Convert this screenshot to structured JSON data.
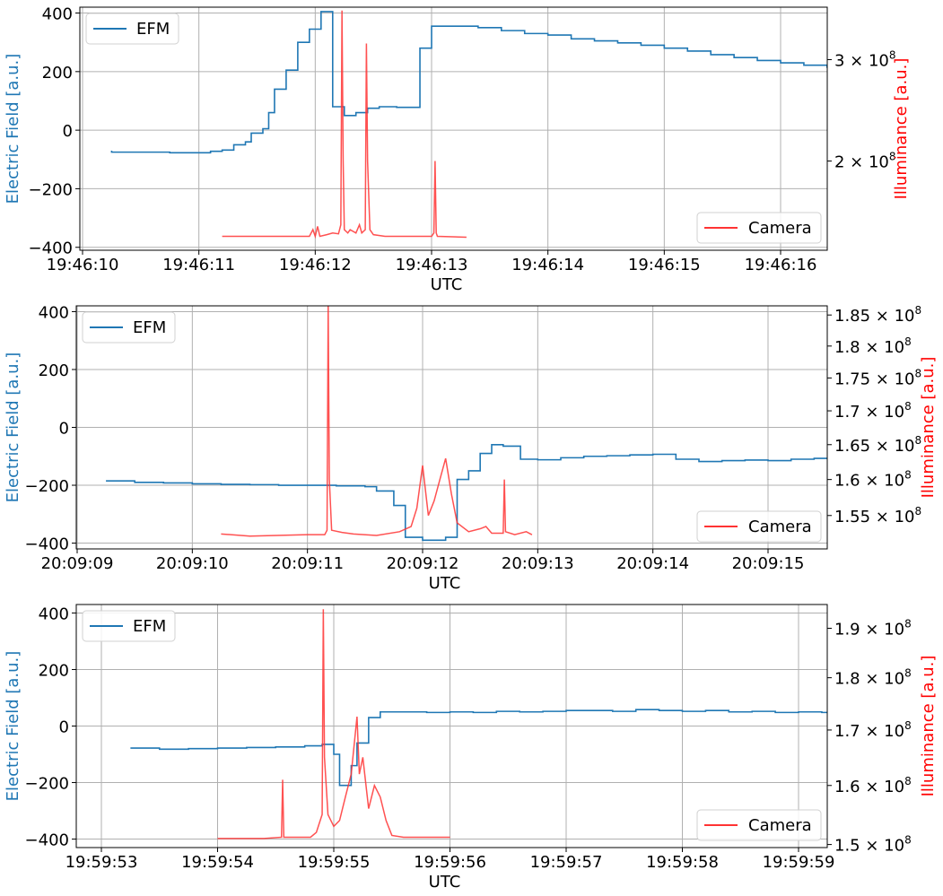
{
  "chart_data": [
    {
      "type": "line",
      "xlabel": "UTC",
      "ylabel_left": "Electric Field [a.u.]",
      "ylabel_right": "Illuminance [a.u.]",
      "x_ticks": [
        "19:46:10",
        "19:46:11",
        "19:46:12",
        "19:46:13",
        "19:46:14",
        "19:46:15",
        "19:46:16"
      ],
      "xlim": [
        -0.02,
        6.4
      ],
      "ylim_left": [
        -410,
        420
      ],
      "ylim_right": [
        140000000,
        370000000
      ],
      "y_right_scale": "log",
      "y_ticks_left": [
        "400",
        "200",
        "0",
        "−200",
        "−400"
      ],
      "y_ticks_right": [
        {
          "value": 300000000,
          "label": "3 × 10",
          "exp": "8"
        },
        {
          "value": 200000000,
          "label": "2 × 10",
          "exp": "8"
        }
      ],
      "grid": true,
      "legend_left_position": "upper left",
      "legend_right_position": "lower right",
      "series": [
        {
          "name": "EFM",
          "axis": "left",
          "style": "steps",
          "color": "#1f77b4",
          "points": [
            [
              0.25,
              -70
            ],
            [
              0.25,
              -75
            ],
            [
              0.5,
              -75
            ],
            [
              0.75,
              -77
            ],
            [
              1.0,
              -77
            ],
            [
              1.1,
              -72
            ],
            [
              1.2,
              -68
            ],
            [
              1.3,
              -50
            ],
            [
              1.4,
              -40
            ],
            [
              1.45,
              -10
            ],
            [
              1.55,
              5
            ],
            [
              1.6,
              60
            ],
            [
              1.65,
              140
            ],
            [
              1.75,
              205
            ],
            [
              1.85,
              300
            ],
            [
              1.95,
              345
            ],
            [
              2.05,
              405
            ],
            [
              2.15,
              80
            ],
            [
              2.25,
              50
            ],
            [
              2.35,
              60
            ],
            [
              2.45,
              75
            ],
            [
              2.55,
              80
            ],
            [
              2.7,
              78
            ],
            [
              2.9,
              280
            ],
            [
              3.0,
              355
            ],
            [
              3.2,
              355
            ],
            [
              3.4,
              350
            ],
            [
              3.6,
              340
            ],
            [
              3.8,
              330
            ],
            [
              4.0,
              325
            ],
            [
              4.2,
              312
            ],
            [
              4.4,
              305
            ],
            [
              4.6,
              298
            ],
            [
              4.8,
              290
            ],
            [
              5.0,
              280
            ],
            [
              5.2,
              270
            ],
            [
              5.4,
              258
            ],
            [
              5.6,
              248
            ],
            [
              5.8,
              238
            ],
            [
              6.0,
              230
            ],
            [
              6.2,
              222
            ],
            [
              6.4,
              215
            ],
            [
              6.6,
              210
            ],
            [
              6.7,
              210
            ]
          ]
        },
        {
          "name": "Camera",
          "axis": "right",
          "style": "line",
          "color": "#ff3333",
          "points": [
            [
              1.2,
              148000000
            ],
            [
              1.5,
              148000000
            ],
            [
              1.8,
              148000000
            ],
            [
              1.95,
              148000000
            ],
            [
              1.98,
              152000000
            ],
            [
              2.0,
              148000000
            ],
            [
              2.02,
              154000000
            ],
            [
              2.04,
              148000000
            ],
            [
              2.1,
              149000000
            ],
            [
              2.15,
              150000000
            ],
            [
              2.2,
              149500000
            ],
            [
              2.22,
              155000000
            ],
            [
              2.23,
              365000000
            ],
            [
              2.24,
              200000000
            ],
            [
              2.25,
              152000000
            ],
            [
              2.28,
              150000000
            ],
            [
              2.3,
              152000000
            ],
            [
              2.35,
              150000000
            ],
            [
              2.38,
              155000000
            ],
            [
              2.4,
              150000000
            ],
            [
              2.43,
              152000000
            ],
            [
              2.44,
              320000000
            ],
            [
              2.45,
              200000000
            ],
            [
              2.47,
              152000000
            ],
            [
              2.5,
              149000000
            ],
            [
              2.6,
              148000000
            ],
            [
              3.0,
              148000000
            ],
            [
              3.02,
              150000000
            ],
            [
              3.03,
              200000000
            ],
            [
              3.04,
              150000000
            ],
            [
              3.05,
              148000000
            ],
            [
              3.3,
              147500000
            ]
          ]
        }
      ]
    },
    {
      "type": "line",
      "xlabel": "UTC",
      "ylabel_left": "Electric Field [a.u.]",
      "ylabel_right": "Illuminance [a.u.]",
      "x_ticks": [
        "20:09:09",
        "20:09:10",
        "20:09:11",
        "20:09:12",
        "20:09:13",
        "20:09:14",
        "20:09:15"
      ],
      "xlim": [
        -0.02,
        6.4
      ],
      "ylim_left": [
        -420,
        420
      ],
      "ylim_right": [
        150500000,
        186500000
      ],
      "y_right_scale": "log",
      "y_ticks_left": [
        "400",
        "200",
        "0",
        "−200",
        "−400"
      ],
      "y_ticks_right": [
        {
          "value": 185000000,
          "label": "1.85 × 10",
          "exp": "8"
        },
        {
          "value": 180000000,
          "label": "1.8 × 10",
          "exp": "8"
        },
        {
          "value": 175000000,
          "label": "1.75 × 10",
          "exp": "8"
        },
        {
          "value": 170000000,
          "label": "1.7 × 10",
          "exp": "8"
        },
        {
          "value": 165000000,
          "label": "1.65 × 10",
          "exp": "8"
        },
        {
          "value": 160000000,
          "label": "1.6 × 10",
          "exp": "8"
        },
        {
          "value": 155000000,
          "label": "1.55 × 10",
          "exp": "8"
        }
      ],
      "grid": true,
      "legend_left_position": "upper left",
      "legend_right_position": "lower right",
      "series": [
        {
          "name": "EFM",
          "axis": "left",
          "style": "steps",
          "color": "#1f77b4",
          "points": [
            [
              0.25,
              -185
            ],
            [
              0.5,
              -190
            ],
            [
              0.75,
              -192
            ],
            [
              1.0,
              -195
            ],
            [
              1.25,
              -197
            ],
            [
              1.5,
              -198
            ],
            [
              1.75,
              -200
            ],
            [
              2.0,
              -200
            ],
            [
              2.25,
              -202
            ],
            [
              2.5,
              -205
            ],
            [
              2.6,
              -220
            ],
            [
              2.75,
              -270
            ],
            [
              2.85,
              -380
            ],
            [
              3.0,
              -390
            ],
            [
              3.2,
              -380
            ],
            [
              3.3,
              -180
            ],
            [
              3.4,
              -150
            ],
            [
              3.5,
              -90
            ],
            [
              3.6,
              -60
            ],
            [
              3.7,
              -65
            ],
            [
              3.85,
              -110
            ],
            [
              4.0,
              -112
            ],
            [
              4.2,
              -105
            ],
            [
              4.4,
              -100
            ],
            [
              4.6,
              -98
            ],
            [
              4.8,
              -95
            ],
            [
              5.0,
              -93
            ],
            [
              5.2,
              -110
            ],
            [
              5.4,
              -118
            ],
            [
              5.6,
              -115
            ],
            [
              5.8,
              -113
            ],
            [
              6.0,
              -115
            ],
            [
              6.2,
              -110
            ],
            [
              6.4,
              -107
            ],
            [
              6.6,
              -102
            ],
            [
              6.7,
              -100
            ]
          ]
        },
        {
          "name": "Camera",
          "axis": "right",
          "style": "line",
          "color": "#ff3333",
          "points": [
            [
              1.25,
              152500000
            ],
            [
              1.5,
              152200000
            ],
            [
              2.0,
              152400000
            ],
            [
              2.15,
              152400000
            ],
            [
              2.17,
              153000000
            ],
            [
              2.18,
              186500000
            ],
            [
              2.19,
              160000000
            ],
            [
              2.21,
              153000000
            ],
            [
              2.3,
              152700000
            ],
            [
              2.4,
              152500000
            ],
            [
              2.6,
              152300000
            ],
            [
              2.8,
              152800000
            ],
            [
              2.9,
              153500000
            ],
            [
              2.95,
              156000000
            ],
            [
              3.0,
              162000000
            ],
            [
              3.05,
              155000000
            ],
            [
              3.1,
              157000000
            ],
            [
              3.15,
              160000000
            ],
            [
              3.2,
              163000000
            ],
            [
              3.22,
              161000000
            ],
            [
              3.25,
              158000000
            ],
            [
              3.3,
              154000000
            ],
            [
              3.4,
              152800000
            ],
            [
              3.5,
              153200000
            ],
            [
              3.55,
              153500000
            ],
            [
              3.6,
              152600000
            ],
            [
              3.7,
              152600000
            ],
            [
              3.71,
              160000000
            ],
            [
              3.72,
              152800000
            ],
            [
              3.8,
              152400000
            ],
            [
              3.9,
              152800000
            ],
            [
              3.95,
              152400000
            ]
          ]
        }
      ]
    },
    {
      "type": "line",
      "xlabel": "UTC",
      "ylabel_left": "Electric Field [a.u.]",
      "ylabel_right": "Illuminance [a.u.]",
      "x_ticks": [
        "19:59:53",
        "19:59:54",
        "19:59:55",
        "19:59:56",
        "19:59:57",
        "19:59:58",
        "19:59:59"
      ],
      "xlim": [
        -0.02,
        6.4
      ],
      "ylim_left": [
        -430,
        430
      ],
      "ylim_right": [
        149500000,
        195000000
      ],
      "y_right_scale": "log",
      "y_ticks_left": [
        "400",
        "200",
        "0",
        "−200",
        "−400"
      ],
      "y_ticks_right": [
        {
          "value": 190000000,
          "label": "1.9 × 10",
          "exp": "8"
        },
        {
          "value": 180000000,
          "label": "1.8 × 10",
          "exp": "8"
        },
        {
          "value": 170000000,
          "label": "1.7 × 10",
          "exp": "8"
        },
        {
          "value": 160000000,
          "label": "1.6 × 10",
          "exp": "8"
        },
        {
          "value": 150000000,
          "label": "1.5 × 10",
          "exp": "8"
        }
      ],
      "grid": true,
      "legend_left_position": "upper left",
      "legend_right_position": "lower right",
      "series": [
        {
          "name": "EFM",
          "axis": "left",
          "style": "steps",
          "color": "#1f77b4",
          "points": [
            [
              0.25,
              -78
            ],
            [
              0.5,
              -82
            ],
            [
              0.75,
              -80
            ],
            [
              1.0,
              -78
            ],
            [
              1.25,
              -76
            ],
            [
              1.5,
              -74
            ],
            [
              1.75,
              -70
            ],
            [
              1.9,
              -65
            ],
            [
              2.0,
              -100
            ],
            [
              2.05,
              -210
            ],
            [
              2.15,
              -140
            ],
            [
              2.2,
              -60
            ],
            [
              2.3,
              30
            ],
            [
              2.4,
              50
            ],
            [
              2.6,
              50
            ],
            [
              2.8,
              48
            ],
            [
              3.0,
              50
            ],
            [
              3.2,
              48
            ],
            [
              3.4,
              52
            ],
            [
              3.6,
              50
            ],
            [
              3.8,
              52
            ],
            [
              4.0,
              55
            ],
            [
              4.2,
              55
            ],
            [
              4.4,
              52
            ],
            [
              4.6,
              58
            ],
            [
              4.8,
              55
            ],
            [
              5.0,
              52
            ],
            [
              5.2,
              55
            ],
            [
              5.4,
              50
            ],
            [
              5.6,
              52
            ],
            [
              5.8,
              48
            ],
            [
              6.0,
              50
            ],
            [
              6.2,
              48
            ],
            [
              6.4,
              48
            ],
            [
              6.6,
              47
            ],
            [
              6.7,
              47
            ]
          ]
        },
        {
          "name": "Camera",
          "axis": "right",
          "style": "line",
          "color": "#ff3333",
          "points": [
            [
              1.0,
              151000000
            ],
            [
              1.4,
              151000000
            ],
            [
              1.55,
              151200000
            ],
            [
              1.56,
              161000000
            ],
            [
              1.57,
              151200000
            ],
            [
              1.8,
              151200000
            ],
            [
              1.85,
              152000000
            ],
            [
              1.9,
              155000000
            ],
            [
              1.91,
              194000000
            ],
            [
              1.92,
              165000000
            ],
            [
              1.95,
              155000000
            ],
            [
              2.0,
              153000000
            ],
            [
              2.05,
              154000000
            ],
            [
              2.1,
              158000000
            ],
            [
              2.15,
              162000000
            ],
            [
              2.2,
              172500000
            ],
            [
              2.22,
              162000000
            ],
            [
              2.25,
              165000000
            ],
            [
              2.3,
              156000000
            ],
            [
              2.35,
              160000000
            ],
            [
              2.4,
              158000000
            ],
            [
              2.45,
              154000000
            ],
            [
              2.5,
              151500000
            ],
            [
              2.6,
              151200000
            ],
            [
              2.8,
              151200000
            ],
            [
              3.0,
              151200000
            ]
          ]
        }
      ]
    }
  ]
}
